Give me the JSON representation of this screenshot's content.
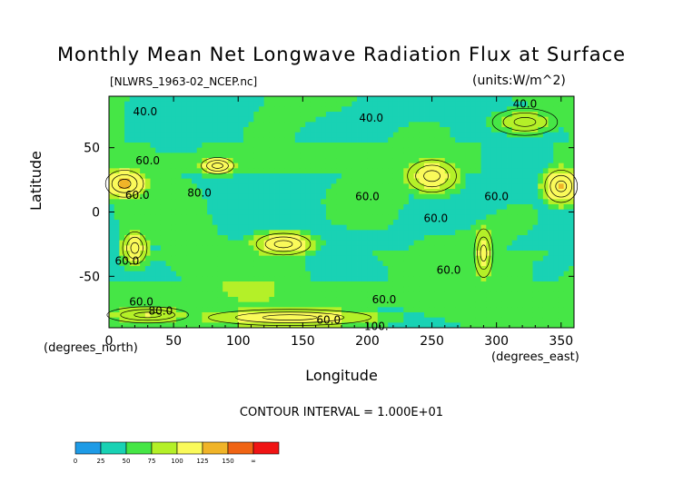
{
  "chart_data": {
    "type": "heatmap",
    "title": "Monthly Mean Net Longwave Radiation Flux at Surface",
    "file_label": "[NLWRS_1963-02_NCEP.nc]",
    "units_label": "(units:W/m^2)",
    "xlabel": "Longitude",
    "ylabel": "Latitude",
    "x_unit_label": "(degrees_east)",
    "y_unit_label": "(degrees_north)",
    "xlim": [
      0,
      360
    ],
    "ylim": [
      -90,
      90
    ],
    "x_ticks": [
      0,
      50,
      100,
      150,
      200,
      250,
      300,
      350
    ],
    "y_ticks": [
      50,
      0,
      -50
    ],
    "contour_interval_label": "CONTOUR INTERVAL = 1.000E+01",
    "contour_labels": [
      {
        "text": "40.0",
        "lon": 28,
        "lat": 78
      },
      {
        "text": "40.0",
        "lon": 203,
        "lat": 73
      },
      {
        "text": "40.0",
        "lon": 322,
        "lat": 84
      },
      {
        "text": "60.0",
        "lon": 30,
        "lat": 40
      },
      {
        "text": "60.0",
        "lon": 22,
        "lat": 13
      },
      {
        "text": "80.0",
        "lon": 70,
        "lat": 15
      },
      {
        "text": "60.0",
        "lon": 200,
        "lat": 12
      },
      {
        "text": "60.0",
        "lon": 300,
        "lat": 12
      },
      {
        "text": "60.0",
        "lon": 253,
        "lat": -5
      },
      {
        "text": "60.0",
        "lon": 14,
        "lat": -38
      },
      {
        "text": "60.0",
        "lon": 263,
        "lat": -45
      },
      {
        "text": "60.0",
        "lon": 25,
        "lat": -70
      },
      {
        "text": "80.0",
        "lon": 40,
        "lat": -77
      },
      {
        "text": "60.0",
        "lon": 213,
        "lat": -68
      },
      {
        "text": "60.0",
        "lon": 170,
        "lat": -84
      },
      {
        "text": "100.",
        "lon": 207,
        "lat": -89
      }
    ],
    "color_levels": [
      0,
      25,
      50,
      75,
      100,
      125,
      150,
      "∞"
    ],
    "colors": [
      "#1e9be6",
      "#19d2b4",
      "#46e646",
      "#b4f028",
      "#fafa5a",
      "#f0b428",
      "#f06414",
      "#f01414"
    ],
    "hot_spots": [
      {
        "lon": 12,
        "lat": 22,
        "rx": 14,
        "ry": 10,
        "peak": 130
      },
      {
        "lon": 84,
        "lat": 36,
        "rx": 12,
        "ry": 6,
        "peak": 125
      },
      {
        "lon": 250,
        "lat": 28,
        "rx": 18,
        "ry": 12,
        "peak": 115
      },
      {
        "lon": 350,
        "lat": 20,
        "rx": 12,
        "ry": 12,
        "peak": 125
      },
      {
        "lon": 20,
        "lat": -28,
        "rx": 9,
        "ry": 12,
        "peak": 115
      },
      {
        "lon": 135,
        "lat": -25,
        "rx": 20,
        "ry": 8,
        "peak": 120
      },
      {
        "lon": 290,
        "lat": -32,
        "rx": 7,
        "ry": 18,
        "peak": 110
      },
      {
        "lon": 322,
        "lat": 70,
        "rx": 24,
        "ry": 10,
        "peak": 90
      },
      {
        "lon": 140,
        "lat": -82,
        "rx": 60,
        "ry": 6,
        "peak": 115
      },
      {
        "lon": 30,
        "lat": -80,
        "rx": 30,
        "ry": 6,
        "peak": 100
      }
    ]
  }
}
